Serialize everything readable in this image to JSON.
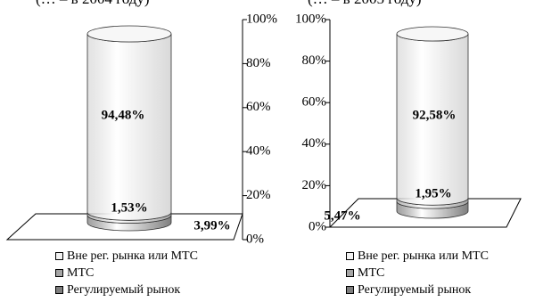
{
  "header": {
    "left_fragment": "(… – в 2004 году)",
    "right_fragment": "(… – в 2005 году)"
  },
  "colors": {
    "outside": "#d9d9d9",
    "mtc": "#a6a6a6",
    "regulated": "#7f7f7f"
  },
  "legend_items": [
    {
      "label": "Вне рег. рынка или МТС",
      "color": "#f2f2f2"
    },
    {
      "label": "МТС",
      "color": "#a6a6a6"
    },
    {
      "label": "Регулируемый рынок",
      "color": "#7f7f7f"
    }
  ],
  "chart_data": [
    {
      "type": "bar",
      "stacked": true,
      "orientation": "vertical",
      "style": "3d-cylinder",
      "categories": [
        ""
      ],
      "series": [
        {
          "name": "Регулируемый рынок",
          "values": [
            3.99
          ]
        },
        {
          "name": "МТС",
          "values": [
            1.53
          ]
        },
        {
          "name": "Вне рег. рынка или МТС",
          "values": [
            94.48
          ]
        }
      ],
      "data_labels": [
        "3,99%",
        "1,53%",
        "94,48%"
      ],
      "y_ticks": [
        "0%",
        "20%",
        "40%",
        "60%",
        "80%",
        "100%"
      ],
      "ylim": [
        0,
        100
      ],
      "y_axis_side": "right",
      "legend_position": "bottom"
    },
    {
      "type": "bar",
      "stacked": true,
      "orientation": "vertical",
      "style": "3d-cylinder",
      "categories": [
        ""
      ],
      "series": [
        {
          "name": "Регулируемый рынок",
          "values": [
            5.47
          ]
        },
        {
          "name": "МТС",
          "values": [
            1.95
          ]
        },
        {
          "name": "Вне рег. рынка или МТС",
          "values": [
            92.58
          ]
        }
      ],
      "data_labels": [
        "5,47%",
        "1,95%",
        "92,58%"
      ],
      "y_ticks": [
        "0%",
        "20%",
        "40%",
        "60%",
        "80%",
        "100%"
      ],
      "ylim": [
        0,
        100
      ],
      "y_axis_side": "left",
      "legend_position": "bottom"
    }
  ]
}
